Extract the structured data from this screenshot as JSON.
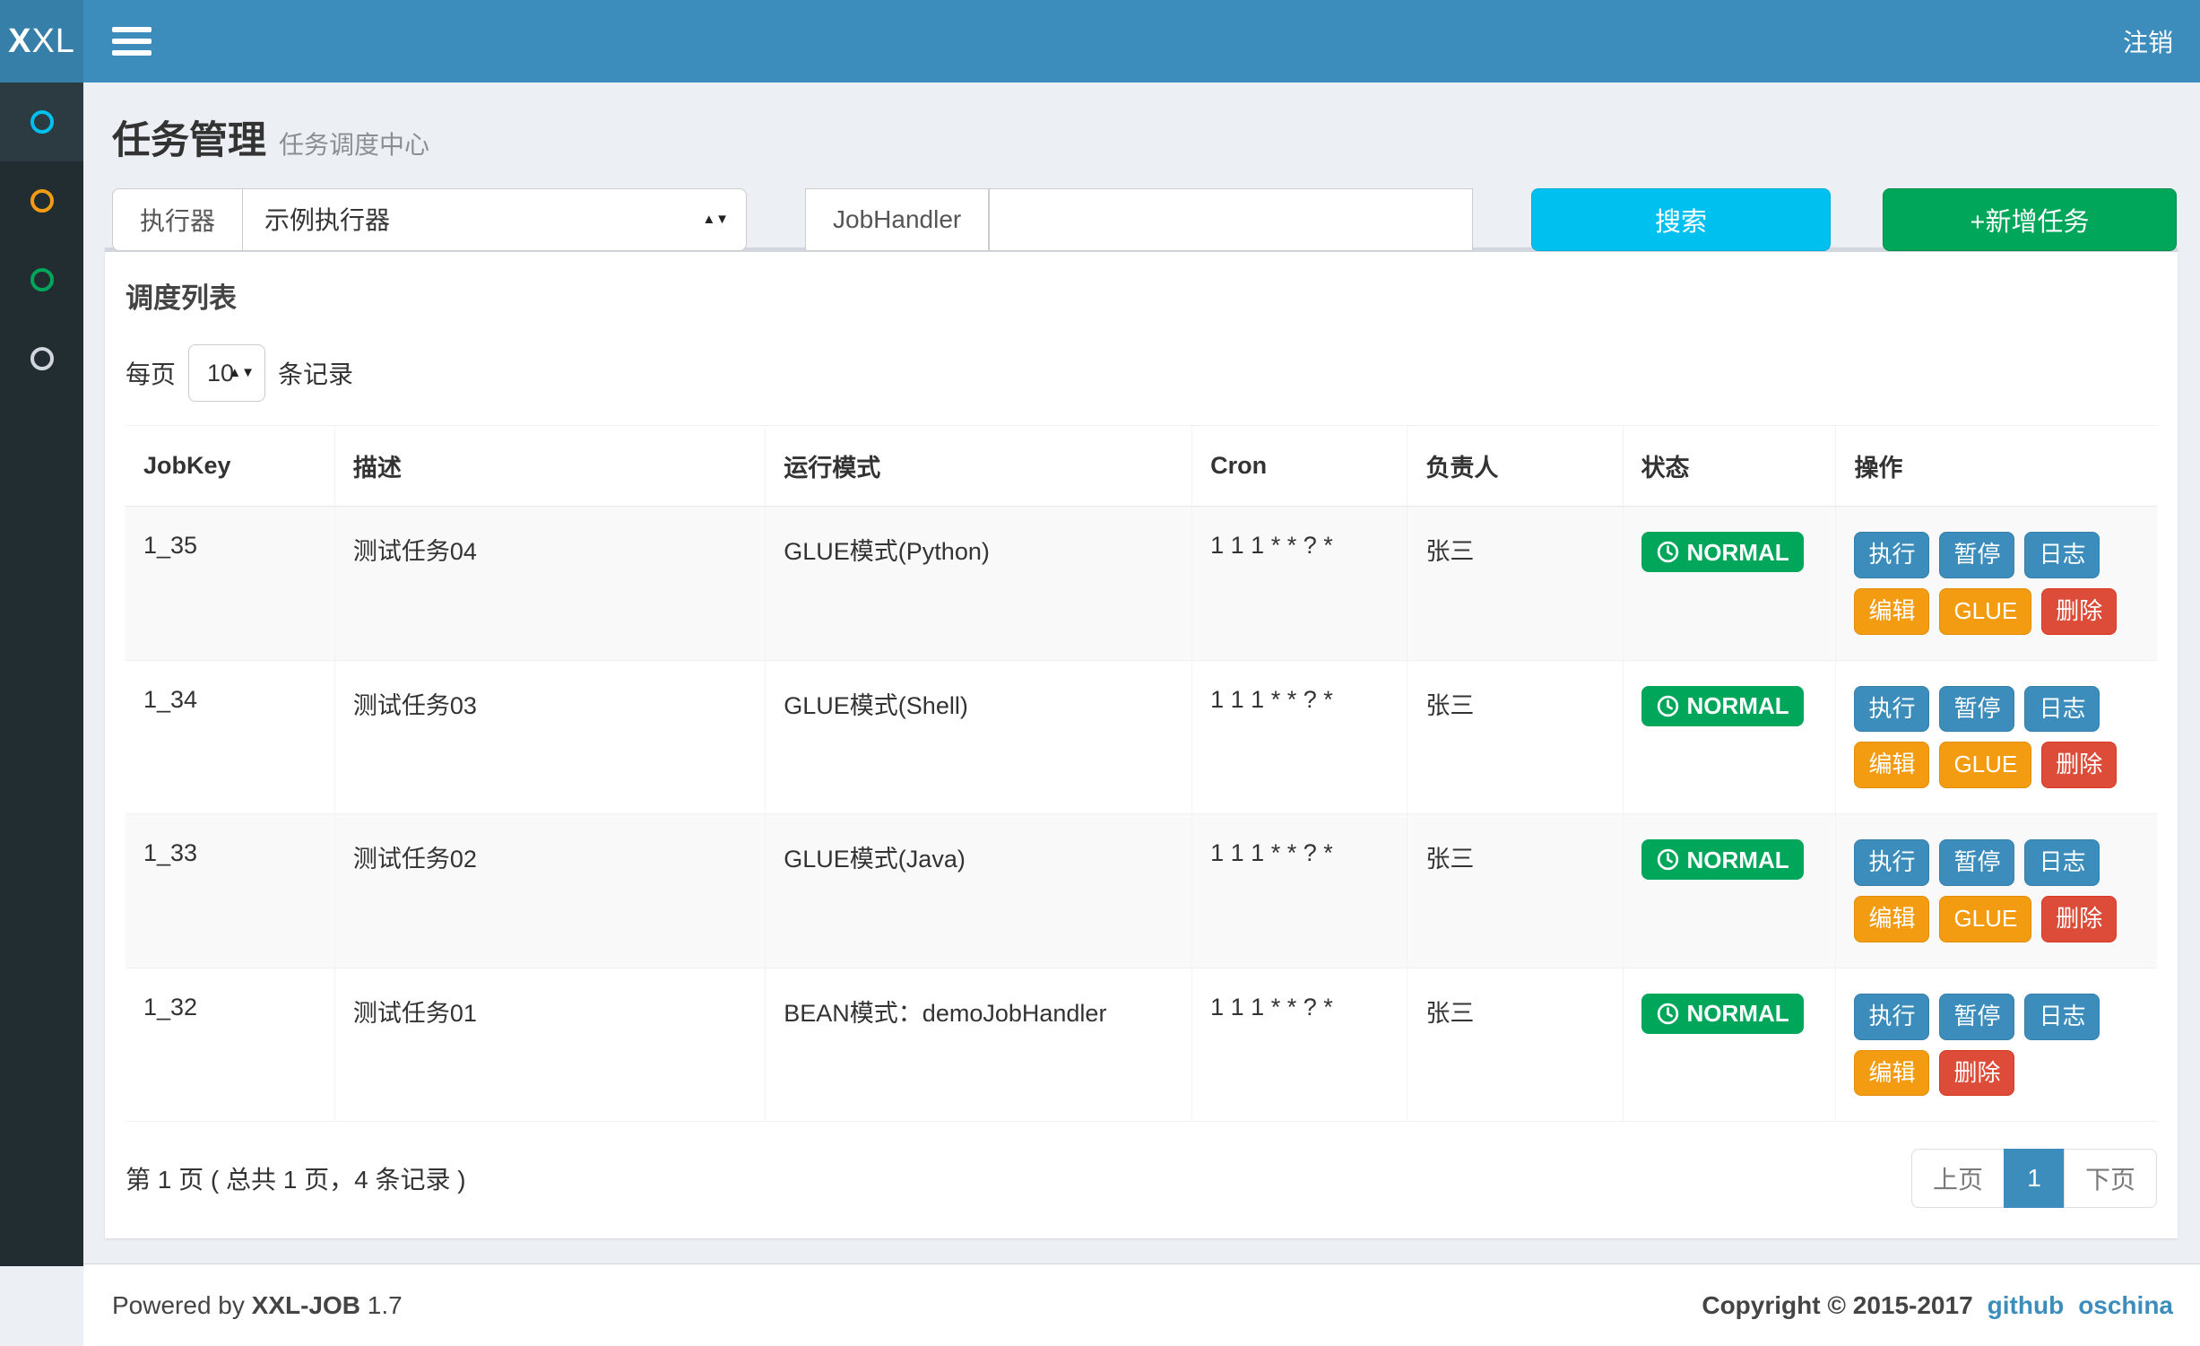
{
  "navbar": {
    "logo_bold": "X",
    "logo_light": "XL",
    "logout_label": "注销"
  },
  "sidebar": {
    "items": [
      {
        "color": "#00c0ef",
        "active": true
      },
      {
        "color": "#f39c12",
        "active": false
      },
      {
        "color": "#00a65a",
        "active": false
      },
      {
        "color": "#d2d6de",
        "active": false
      }
    ]
  },
  "page": {
    "title": "任务管理",
    "subtitle": "任务调度中心"
  },
  "filters": {
    "executor_label": "执行器",
    "executor_value": "示例执行器",
    "jobhandler_label": "JobHandler",
    "jobhandler_value": "",
    "search_label": "搜索",
    "add_label": "+新增任务"
  },
  "panel": {
    "title": "调度列表",
    "page_size_prefix": "每页",
    "page_size": "10",
    "page_size_suffix": "条记录"
  },
  "table": {
    "columns": [
      "JobKey",
      "描述",
      "运行模式",
      "Cron",
      "负责人",
      "状态",
      "操作"
    ],
    "rows": [
      {
        "jobkey": "1_35",
        "desc": "测试任务04",
        "mode": "GLUE模式(Python)",
        "cron": "1 1 1 * * ? *",
        "owner": "张三",
        "status": "NORMAL",
        "actions": [
          {
            "name": "run",
            "label": "执行",
            "style": "primary"
          },
          {
            "name": "pause",
            "label": "暂停",
            "style": "primary"
          },
          {
            "name": "log",
            "label": "日志",
            "style": "primary"
          },
          {
            "name": "edit",
            "label": "编辑",
            "style": "warning"
          },
          {
            "name": "glue",
            "label": "GLUE",
            "style": "warning"
          },
          {
            "name": "delete",
            "label": "删除",
            "style": "danger"
          }
        ]
      },
      {
        "jobkey": "1_34",
        "desc": "测试任务03",
        "mode": "GLUE模式(Shell)",
        "cron": "1 1 1 * * ? *",
        "owner": "张三",
        "status": "NORMAL",
        "actions": [
          {
            "name": "run",
            "label": "执行",
            "style": "primary"
          },
          {
            "name": "pause",
            "label": "暂停",
            "style": "primary"
          },
          {
            "name": "log",
            "label": "日志",
            "style": "primary"
          },
          {
            "name": "edit",
            "label": "编辑",
            "style": "warning"
          },
          {
            "name": "glue",
            "label": "GLUE",
            "style": "warning"
          },
          {
            "name": "delete",
            "label": "删除",
            "style": "danger"
          }
        ]
      },
      {
        "jobkey": "1_33",
        "desc": "测试任务02",
        "mode": "GLUE模式(Java)",
        "cron": "1 1 1 * * ? *",
        "owner": "张三",
        "status": "NORMAL",
        "actions": [
          {
            "name": "run",
            "label": "执行",
            "style": "primary"
          },
          {
            "name": "pause",
            "label": "暂停",
            "style": "primary"
          },
          {
            "name": "log",
            "label": "日志",
            "style": "primary"
          },
          {
            "name": "edit",
            "label": "编辑",
            "style": "warning"
          },
          {
            "name": "glue",
            "label": "GLUE",
            "style": "warning"
          },
          {
            "name": "delete",
            "label": "删除",
            "style": "danger"
          }
        ]
      },
      {
        "jobkey": "1_32",
        "desc": "测试任务01",
        "mode": "BEAN模式：demoJobHandler",
        "cron": "1 1 1 * * ? *",
        "owner": "张三",
        "status": "NORMAL",
        "actions": [
          {
            "name": "run",
            "label": "执行",
            "style": "primary"
          },
          {
            "name": "pause",
            "label": "暂停",
            "style": "primary"
          },
          {
            "name": "log",
            "label": "日志",
            "style": "primary"
          },
          {
            "name": "edit",
            "label": "编辑",
            "style": "warning"
          },
          {
            "name": "delete",
            "label": "删除",
            "style": "danger"
          }
        ]
      }
    ]
  },
  "pagination": {
    "info": "第 1 页 ( 总共 1 页，4 条记录 )",
    "prev_label": "上页",
    "current_page": "1",
    "next_label": "下页"
  },
  "footer": {
    "powered_prefix": "Powered by",
    "product": "XXL-JOB",
    "version": "1.7",
    "copyright": "Copyright © 2015-2017",
    "links": [
      "github",
      "oschina"
    ]
  },
  "colors": {
    "navbar": "#3c8dbc",
    "logo_bg": "#367fa9",
    "sidebar_bg": "#222d32",
    "sidebar_active_bg": "#2c3b41",
    "content_bg": "#ecf0f5",
    "primary": "#3c8dbc",
    "info": "#00c0ef",
    "success": "#00a65a",
    "warning": "#f39c12",
    "danger": "#dd4b39",
    "link": "#3c8dbc"
  }
}
